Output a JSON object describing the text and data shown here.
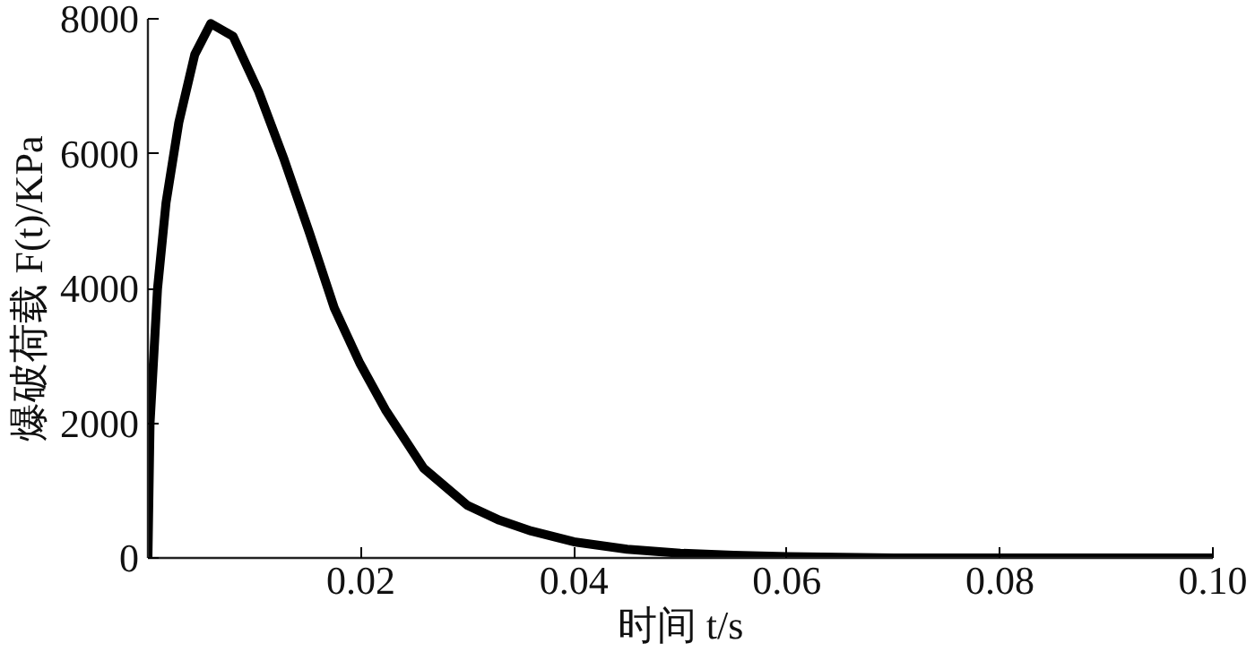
{
  "chart_data": {
    "type": "line",
    "xlabel": "时间 t/s",
    "ylabel": "爆破荷载 F(t)/KPa",
    "x": [
      0,
      0.0002,
      0.0009,
      0.0017,
      0.0029,
      0.0044,
      0.0059,
      0.008,
      0.0104,
      0.0128,
      0.0152,
      0.0175,
      0.0199,
      0.0223,
      0.0259,
      0.03,
      0.033,
      0.036,
      0.04,
      0.045,
      0.05,
      0.055,
      0.06,
      0.07,
      0.08,
      0.09,
      0.1
    ],
    "series": [
      {
        "color": "#000000",
        "values": [
          0,
          2000,
          3990,
          5270,
          6460,
          7470,
          7930,
          7740,
          6920,
          5910,
          4810,
          3710,
          2890,
          2200,
          1330,
          780,
          560,
          400,
          240,
          130,
          70,
          40,
          20,
          0,
          0,
          0,
          0
        ]
      }
    ],
    "xlim": [
      0,
      0.1
    ],
    "ylim": [
      0,
      8000
    ],
    "xticks": [
      0.02,
      0.04,
      0.06,
      0.08,
      {
        "value": 0.1,
        "label": "0.10"
      }
    ],
    "yticks": [
      0,
      2000,
      4000,
      6000,
      8000
    ],
    "grid": false,
    "marker": "none",
    "line_style": "solid"
  }
}
